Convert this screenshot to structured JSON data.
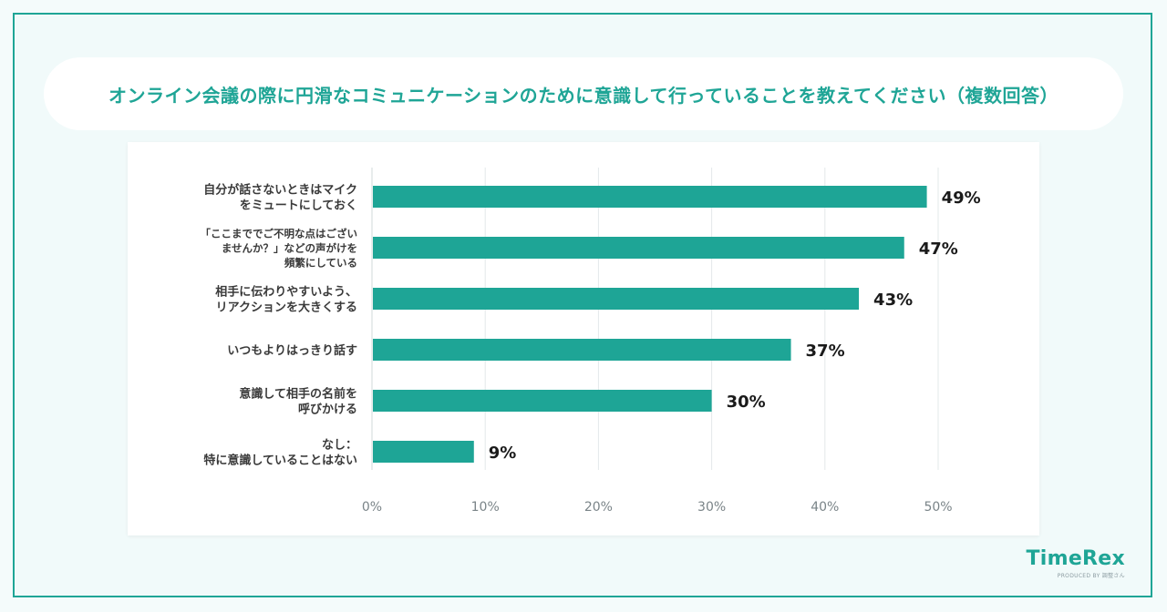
{
  "title": "オンライン会議の際に円滑なコミュニケーションのために意識して行っていることを教えてください（複数回答）",
  "brand": {
    "name": "TimeRex",
    "tagline": "PRODUCED BY 調整さん"
  },
  "chart_data": {
    "type": "bar",
    "orientation": "horizontal",
    "title": "オンライン会議の際に円滑なコミュニケーションのために意識して行っていることを教えてください（複数回答）",
    "categories": [
      [
        "自分が話さないときはマイク",
        "をミュートにしておく"
      ],
      [
        "「ここまででご不明な点はござい",
        "ませんか？」などの声がけを",
        "頻繁にしている"
      ],
      [
        "相手に伝わりやすいよう、",
        "リアクションを大きくする"
      ],
      [
        "いつもよりはっきり話す"
      ],
      [
        "意識して相手の名前を",
        "呼びかける"
      ],
      [
        "なし：",
        "特に意識していることはない"
      ]
    ],
    "values": [
      49,
      47,
      43,
      37,
      30,
      9
    ],
    "value_labels": [
      "49%",
      "47%",
      "43%",
      "37%",
      "30%",
      "9%"
    ],
    "xlim": [
      0,
      50
    ],
    "xticks": [
      "0%",
      "10%",
      "20%",
      "30%",
      "40%",
      "50%"
    ],
    "grid": true,
    "bar_color": "#1ea596",
    "grid_color": "#e3e8ea"
  }
}
